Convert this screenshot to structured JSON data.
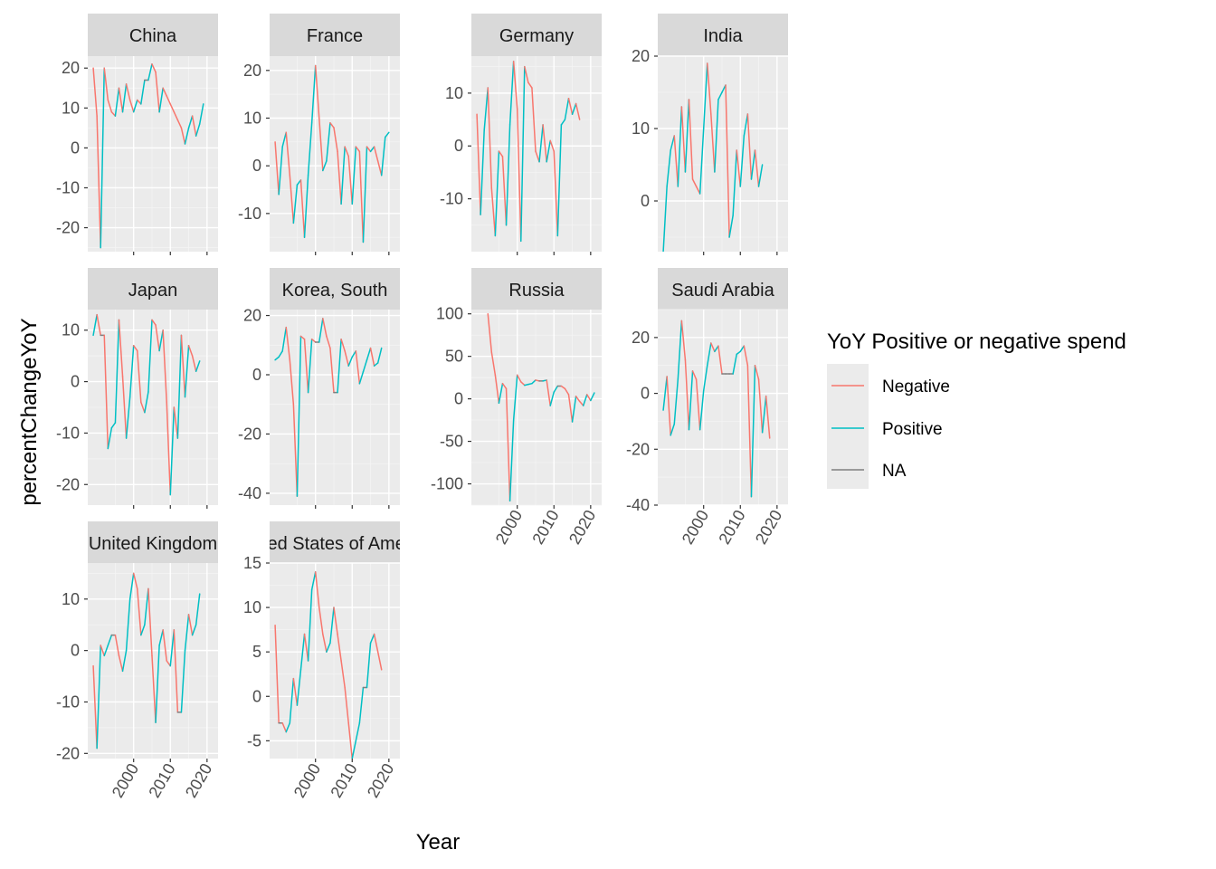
{
  "chart_data": {
    "type": "line",
    "xlabel": "Year",
    "ylabel": "percentChangeYoY",
    "x_ticks": [
      2000,
      2010,
      2020
    ],
    "legend": {
      "title": "YoY Positive or negative spend",
      "position": "right",
      "entries": [
        {
          "label": "Negative",
          "color": "#F8766D"
        },
        {
          "label": "Positive",
          "color": "#00BFC4"
        },
        {
          "label": "NA",
          "color": "#7F7F7F"
        }
      ]
    },
    "grid": true,
    "panels": [
      {
        "name": "China",
        "ylim": [
          -26,
          23
        ],
        "yticks": [
          -20,
          -10,
          0,
          10,
          20
        ],
        "x": [
          1989,
          1990,
          1991,
          1992,
          1993,
          1994,
          1995,
          1996,
          1997,
          1998,
          1999,
          2000,
          2001,
          2002,
          2003,
          2004,
          2005,
          2006,
          2007,
          2008,
          2009,
          2010,
          2011,
          2012,
          2013,
          2014,
          2015,
          2016,
          2017,
          2018,
          2019,
          2020,
          2021
        ],
        "y": [
          20,
          8,
          -25,
          20,
          12,
          9,
          8,
          15,
          9,
          16,
          12,
          9,
          12,
          11,
          17,
          17,
          21,
          19,
          9,
          15,
          13,
          11,
          9,
          7,
          5,
          1,
          5,
          8,
          3,
          6,
          11,
          null,
          null
        ]
      },
      {
        "name": "France",
        "ylim": [
          -18,
          23
        ],
        "yticks": [
          -10,
          0,
          10,
          20
        ],
        "x": [
          1989,
          1990,
          1991,
          1992,
          1993,
          1994,
          1995,
          1996,
          1997,
          1998,
          1999,
          2000,
          2001,
          2002,
          2003,
          2004,
          2005,
          2006,
          2007,
          2008,
          2009,
          2010,
          2011,
          2012,
          2013,
          2014,
          2015,
          2016,
          2017,
          2018,
          2019,
          2020,
          2021,
          2022
        ],
        "y": [
          5,
          -6,
          4,
          7,
          -2,
          -12,
          -4,
          -3,
          -15,
          -2,
          9,
          21,
          10,
          -1,
          1,
          9,
          8,
          3,
          -8,
          4,
          2,
          -8,
          4,
          3,
          -16,
          4,
          3,
          4,
          1,
          -2,
          6,
          7,
          null,
          null
        ]
      },
      {
        "name": "Germany",
        "ylim": [
          -20,
          17
        ],
        "yticks": [
          -10,
          0,
          10
        ],
        "x": [
          1989,
          1990,
          1991,
          1992,
          1993,
          1994,
          1995,
          1996,
          1997,
          1998,
          1999,
          2000,
          2001,
          2002,
          2003,
          2004,
          2005,
          2006,
          2007,
          2008,
          2009,
          2010,
          2011,
          2012,
          2013,
          2014,
          2015,
          2016,
          2017,
          2018,
          2019,
          2020,
          2021
        ],
        "y": [
          6,
          -13,
          3,
          11,
          -8,
          -17,
          -1,
          -2,
          -15,
          4,
          16,
          7,
          -18,
          15,
          12,
          11,
          -1,
          -3,
          4,
          -3,
          1,
          -1,
          -17,
          4,
          5,
          9,
          6,
          8,
          5,
          null,
          null,
          null,
          null
        ]
      },
      {
        "name": "India",
        "ylim": [
          -7,
          20
        ],
        "yticks": [
          0,
          10,
          20
        ],
        "x": [
          1989,
          1990,
          1991,
          1992,
          1993,
          1994,
          1995,
          1996,
          1997,
          1998,
          1999,
          2000,
          2001,
          2002,
          2003,
          2004,
          2005,
          2006,
          2007,
          2008,
          2009,
          2010,
          2011,
          2012,
          2013,
          2014,
          2015,
          2016,
          2017,
          2018,
          2019,
          2020,
          2021
        ],
        "y": [
          -7,
          2,
          7,
          9,
          2,
          13,
          4,
          14,
          3,
          2,
          1,
          10,
          19,
          12,
          4,
          14,
          15,
          16,
          -5,
          -2,
          7,
          2,
          9,
          12,
          3,
          7,
          2,
          5,
          null,
          null,
          null,
          null,
          null
        ]
      },
      {
        "name": "Japan",
        "ylim": [
          -24,
          14
        ],
        "yticks": [
          -20,
          -10,
          0,
          10
        ],
        "x": [
          1989,
          1990,
          1991,
          1992,
          1993,
          1994,
          1995,
          1996,
          1997,
          1998,
          1999,
          2000,
          2001,
          2002,
          2003,
          2004,
          2005,
          2006,
          2007,
          2008,
          2009,
          2010,
          2011,
          2012,
          2013,
          2014,
          2015,
          2016,
          2017,
          2018,
          2019,
          2020,
          2021
        ],
        "y": [
          9,
          13,
          9,
          9,
          -13,
          -9,
          -8,
          12,
          1,
          -11,
          -3,
          7,
          6,
          -4,
          -6,
          -2,
          12,
          11,
          6,
          10,
          -4,
          -22,
          -5,
          -11,
          9,
          -3,
          7,
          5,
          2,
          4,
          null,
          null,
          null
        ]
      },
      {
        "name": "Korea, South",
        "ylim": [
          -44,
          22
        ],
        "yticks": [
          -40,
          -20,
          0,
          20
        ],
        "x": [
          1989,
          1990,
          1991,
          1992,
          1993,
          1994,
          1995,
          1996,
          1997,
          1998,
          1999,
          2000,
          2001,
          2002,
          2003,
          2004,
          2005,
          2006,
          2007,
          2008,
          2009,
          2010,
          2011,
          2012,
          2013,
          2014,
          2015,
          2016,
          2017,
          2018,
          2019,
          2020,
          2021
        ],
        "y": [
          5,
          6,
          8,
          16,
          5,
          -10,
          -41,
          13,
          12,
          -6,
          12,
          11,
          11,
          19,
          13,
          9,
          -6,
          -6,
          12,
          8,
          3,
          6,
          8,
          -3,
          1,
          5,
          9,
          3,
          4,
          9,
          null,
          null,
          null
        ]
      },
      {
        "name": "Russia",
        "ylim": [
          -125,
          105
        ],
        "yticks": [
          -100,
          -50,
          0,
          50,
          100
        ],
        "x": [
          1992,
          1993,
          1994,
          1995,
          1996,
          1997,
          1998,
          1999,
          2000,
          2001,
          2002,
          2003,
          2004,
          2005,
          2006,
          2007,
          2008,
          2009,
          2010,
          2011,
          2012,
          2013,
          2014,
          2015,
          2016,
          2017,
          2018,
          2019,
          2020,
          2021,
          2022
        ],
        "y": [
          100,
          55,
          28,
          -5,
          18,
          12,
          -120,
          -25,
          28,
          20,
          16,
          17,
          18,
          22,
          21,
          21,
          22,
          -8,
          8,
          15,
          15,
          12,
          5,
          -27,
          3,
          -3,
          -8,
          5,
          -2,
          7,
          null
        ]
      },
      {
        "name": "Saudi Arabia",
        "ylim": [
          -40,
          30
        ],
        "yticks": [
          -40,
          -20,
          0,
          20
        ],
        "x": [
          1989,
          1990,
          1991,
          1992,
          1993,
          1994,
          1995,
          1996,
          1997,
          1998,
          1999,
          2000,
          2001,
          2002,
          2003,
          2004,
          2005,
          2006,
          2007,
          2008,
          2009,
          2010,
          2011,
          2012,
          2013,
          2014,
          2015,
          2016,
          2017,
          2018,
          2019,
          2020,
          2021
        ],
        "y": [
          -6,
          6,
          -15,
          -11,
          5,
          26,
          12,
          -13,
          8,
          5,
          -13,
          1,
          10,
          18,
          15,
          17,
          7,
          7,
          7,
          7,
          14,
          15,
          17,
          10,
          -37,
          10,
          5,
          -14,
          -1,
          -16,
          null,
          null,
          null
        ]
      },
      {
        "name": "United Kingdom",
        "ylim": [
          -21,
          17
        ],
        "yticks": [
          -20,
          -10,
          0,
          10
        ],
        "x": [
          1989,
          1990,
          1991,
          1992,
          1993,
          1994,
          1995,
          1996,
          1997,
          1998,
          1999,
          2000,
          2001,
          2002,
          2003,
          2004,
          2005,
          2006,
          2007,
          2008,
          2009,
          2010,
          2011,
          2012,
          2013,
          2014,
          2015,
          2016,
          2017,
          2018,
          2019,
          2020,
          2021
        ],
        "y": [
          -3,
          -19,
          1,
          -1,
          1,
          3,
          3,
          -1,
          -4,
          0,
          10,
          15,
          12,
          3,
          5,
          12,
          -1,
          -14,
          1,
          4,
          -2,
          -3,
          4,
          -12,
          -12,
          0,
          7,
          3,
          5,
          11,
          null,
          null,
          null
        ]
      },
      {
        "name": "United States of America",
        "ylim": [
          -7,
          15
        ],
        "yticks": [
          -5,
          0,
          5,
          10,
          15
        ],
        "x": [
          1989,
          1990,
          1991,
          1992,
          1993,
          1994,
          1995,
          1996,
          1997,
          1998,
          1999,
          2000,
          2001,
          2002,
          2003,
          2004,
          2005,
          2006,
          2007,
          2008,
          2009,
          2010,
          2011,
          2012,
          2013,
          2014,
          2015,
          2016,
          2017,
          2018,
          2019,
          2020,
          2021
        ],
        "y": [
          8,
          -3,
          -3,
          -4,
          -3,
          2,
          -1,
          3,
          7,
          4,
          12,
          14,
          10,
          7,
          5,
          6,
          10,
          7,
          4,
          1,
          -3,
          -7,
          -5,
          -3,
          1,
          1,
          6,
          7,
          5,
          3,
          null,
          null,
          null
        ]
      }
    ]
  }
}
